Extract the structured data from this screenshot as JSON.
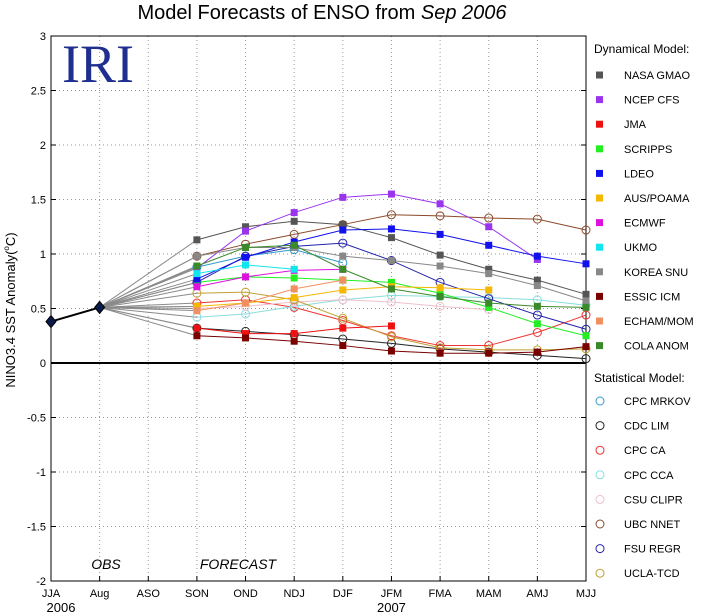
{
  "header": {
    "title_prefix": "Model Forecasts of ENSO from ",
    "title_date": "Sep 2006",
    "logo_text": "IRI",
    "logo_color": "#1f2f8f"
  },
  "labels": {
    "obs": "OBS",
    "forecast": "FORECAST"
  },
  "chart_data": {
    "type": "line",
    "ylabel_main": "NINO3.4 SST Anomaly(",
    "ylabel_deg": "o",
    "ylabel_end": "C)",
    "ylim": [
      -2,
      3
    ],
    "yticks": [
      "-2",
      "-1.5",
      "-1",
      "-0.5",
      "0",
      "0.5",
      "1",
      "1.5",
      "2",
      "2.5",
      "3"
    ],
    "categories": [
      "JJA",
      "Aug",
      "ASO",
      "SON",
      "OND",
      "NDJ",
      "DJF",
      "JFM",
      "FMA",
      "MAM",
      "AMJ",
      "MJJ"
    ],
    "year_labels": [
      {
        "text": "2006",
        "at": 0
      },
      {
        "text": "2007",
        "at": 7
      }
    ],
    "grid": "dotted",
    "observed": [
      {
        "x": 0,
        "y": 0.38
      },
      {
        "x": 1,
        "y": 0.51
      }
    ],
    "dynamical_title": "Dynamical Model:",
    "statistical_title": "Statistical Model:",
    "dynamical": [
      {
        "name": "NASA GMAO",
        "color": "#555555",
        "values": [
          1.13,
          1.25,
          1.3,
          1.27,
          1.15,
          0.99,
          0.86,
          0.76,
          0.63
        ]
      },
      {
        "name": "NCEP CFS",
        "color": "#9933ee",
        "values": [
          0.87,
          1.21,
          1.38,
          1.52,
          1.55,
          1.46,
          1.25,
          0.95,
          null
        ]
      },
      {
        "name": "JMA",
        "color": "#ee1111",
        "values": [
          0.32,
          0.27,
          0.27,
          0.32,
          0.34,
          null,
          null,
          null,
          null
        ]
      },
      {
        "name": "SCRIPPS",
        "color": "#22ee22",
        "values": [
          0.74,
          0.79,
          0.78,
          0.76,
          0.74,
          0.64,
          0.51,
          0.36,
          0.25
        ]
      },
      {
        "name": "LDEO",
        "color": "#1111ee",
        "values": [
          0.77,
          0.97,
          1.11,
          1.22,
          1.23,
          1.18,
          1.08,
          0.98,
          0.91
        ]
      },
      {
        "name": "AUS/POAMA",
        "color": "#f5b800",
        "values": [
          0.52,
          0.55,
          0.6,
          0.67,
          0.7,
          0.69,
          0.67,
          null,
          null
        ]
      },
      {
        "name": "ECMWF",
        "color": "#dd11dd",
        "values": [
          0.7,
          0.79,
          0.85,
          0.86,
          null,
          null,
          null,
          null,
          null
        ]
      },
      {
        "name": "UKMO",
        "color": "#11e5ee",
        "values": [
          0.82,
          0.9,
          0.86,
          null,
          null,
          null,
          null,
          null,
          null
        ]
      },
      {
        "name": "KOREA SNU",
        "color": "#888888",
        "values": [
          0.98,
          1.06,
          1.06,
          0.98,
          0.94,
          0.89,
          0.82,
          0.71,
          0.57
        ]
      },
      {
        "name": "ESSIC ICM",
        "color": "#7a0000",
        "values": [
          0.25,
          0.23,
          0.2,
          0.16,
          0.11,
          0.09,
          0.09,
          0.1,
          0.15
        ]
      },
      {
        "name": "ECHAM/MOM",
        "color": "#f09060",
        "values": [
          0.48,
          0.55,
          0.68,
          0.76,
          null,
          null,
          null,
          null,
          null
        ]
      },
      {
        "name": "COLA ANOM",
        "color": "#3a8a2a",
        "values": [
          0.89,
          1.06,
          1.08,
          0.86,
          0.68,
          0.61,
          0.55,
          0.52,
          0.51
        ]
      }
    ],
    "statistical": [
      {
        "name": "CPC MRKOV",
        "color": "#3399cc",
        "values": [
          0.88,
          0.98,
          1.04,
          0.92,
          null,
          null,
          null,
          null,
          null
        ]
      },
      {
        "name": "CDC LIM",
        "color": "#222222",
        "values": [
          0.32,
          0.29,
          0.26,
          0.22,
          0.18,
          0.13,
          0.1,
          0.07,
          0.04
        ]
      },
      {
        "name": "CPC CA",
        "color": "#ee3333",
        "values": [
          0.55,
          0.58,
          0.51,
          0.39,
          0.25,
          0.16,
          0.16,
          0.28,
          0.44
        ]
      },
      {
        "name": "CPC CCA",
        "color": "#88dddd",
        "values": [
          0.42,
          0.45,
          0.52,
          0.58,
          0.62,
          0.61,
          0.6,
          0.58,
          0.53
        ]
      },
      {
        "name": "CSU CLIPR",
        "color": "#eec0cc",
        "values": [
          0.5,
          0.52,
          0.56,
          0.58,
          0.56,
          0.52,
          0.49,
          null,
          null
        ]
      },
      {
        "name": "UBC NNET",
        "color": "#8a4a2a",
        "values": [
          0.98,
          1.09,
          1.18,
          1.27,
          1.36,
          1.35,
          1.33,
          1.32,
          1.22
        ]
      },
      {
        "name": "FSU REGR",
        "color": "#2222aa",
        "values": [
          0.74,
          0.98,
          1.07,
          1.1,
          0.94,
          0.74,
          0.59,
          0.44,
          0.31
        ]
      },
      {
        "name": "UCLA-TCD",
        "color": "#c0a030",
        "values": [
          0.64,
          0.65,
          0.58,
          0.41,
          0.24,
          0.14,
          0.12,
          0.12,
          0.13
        ]
      }
    ]
  }
}
